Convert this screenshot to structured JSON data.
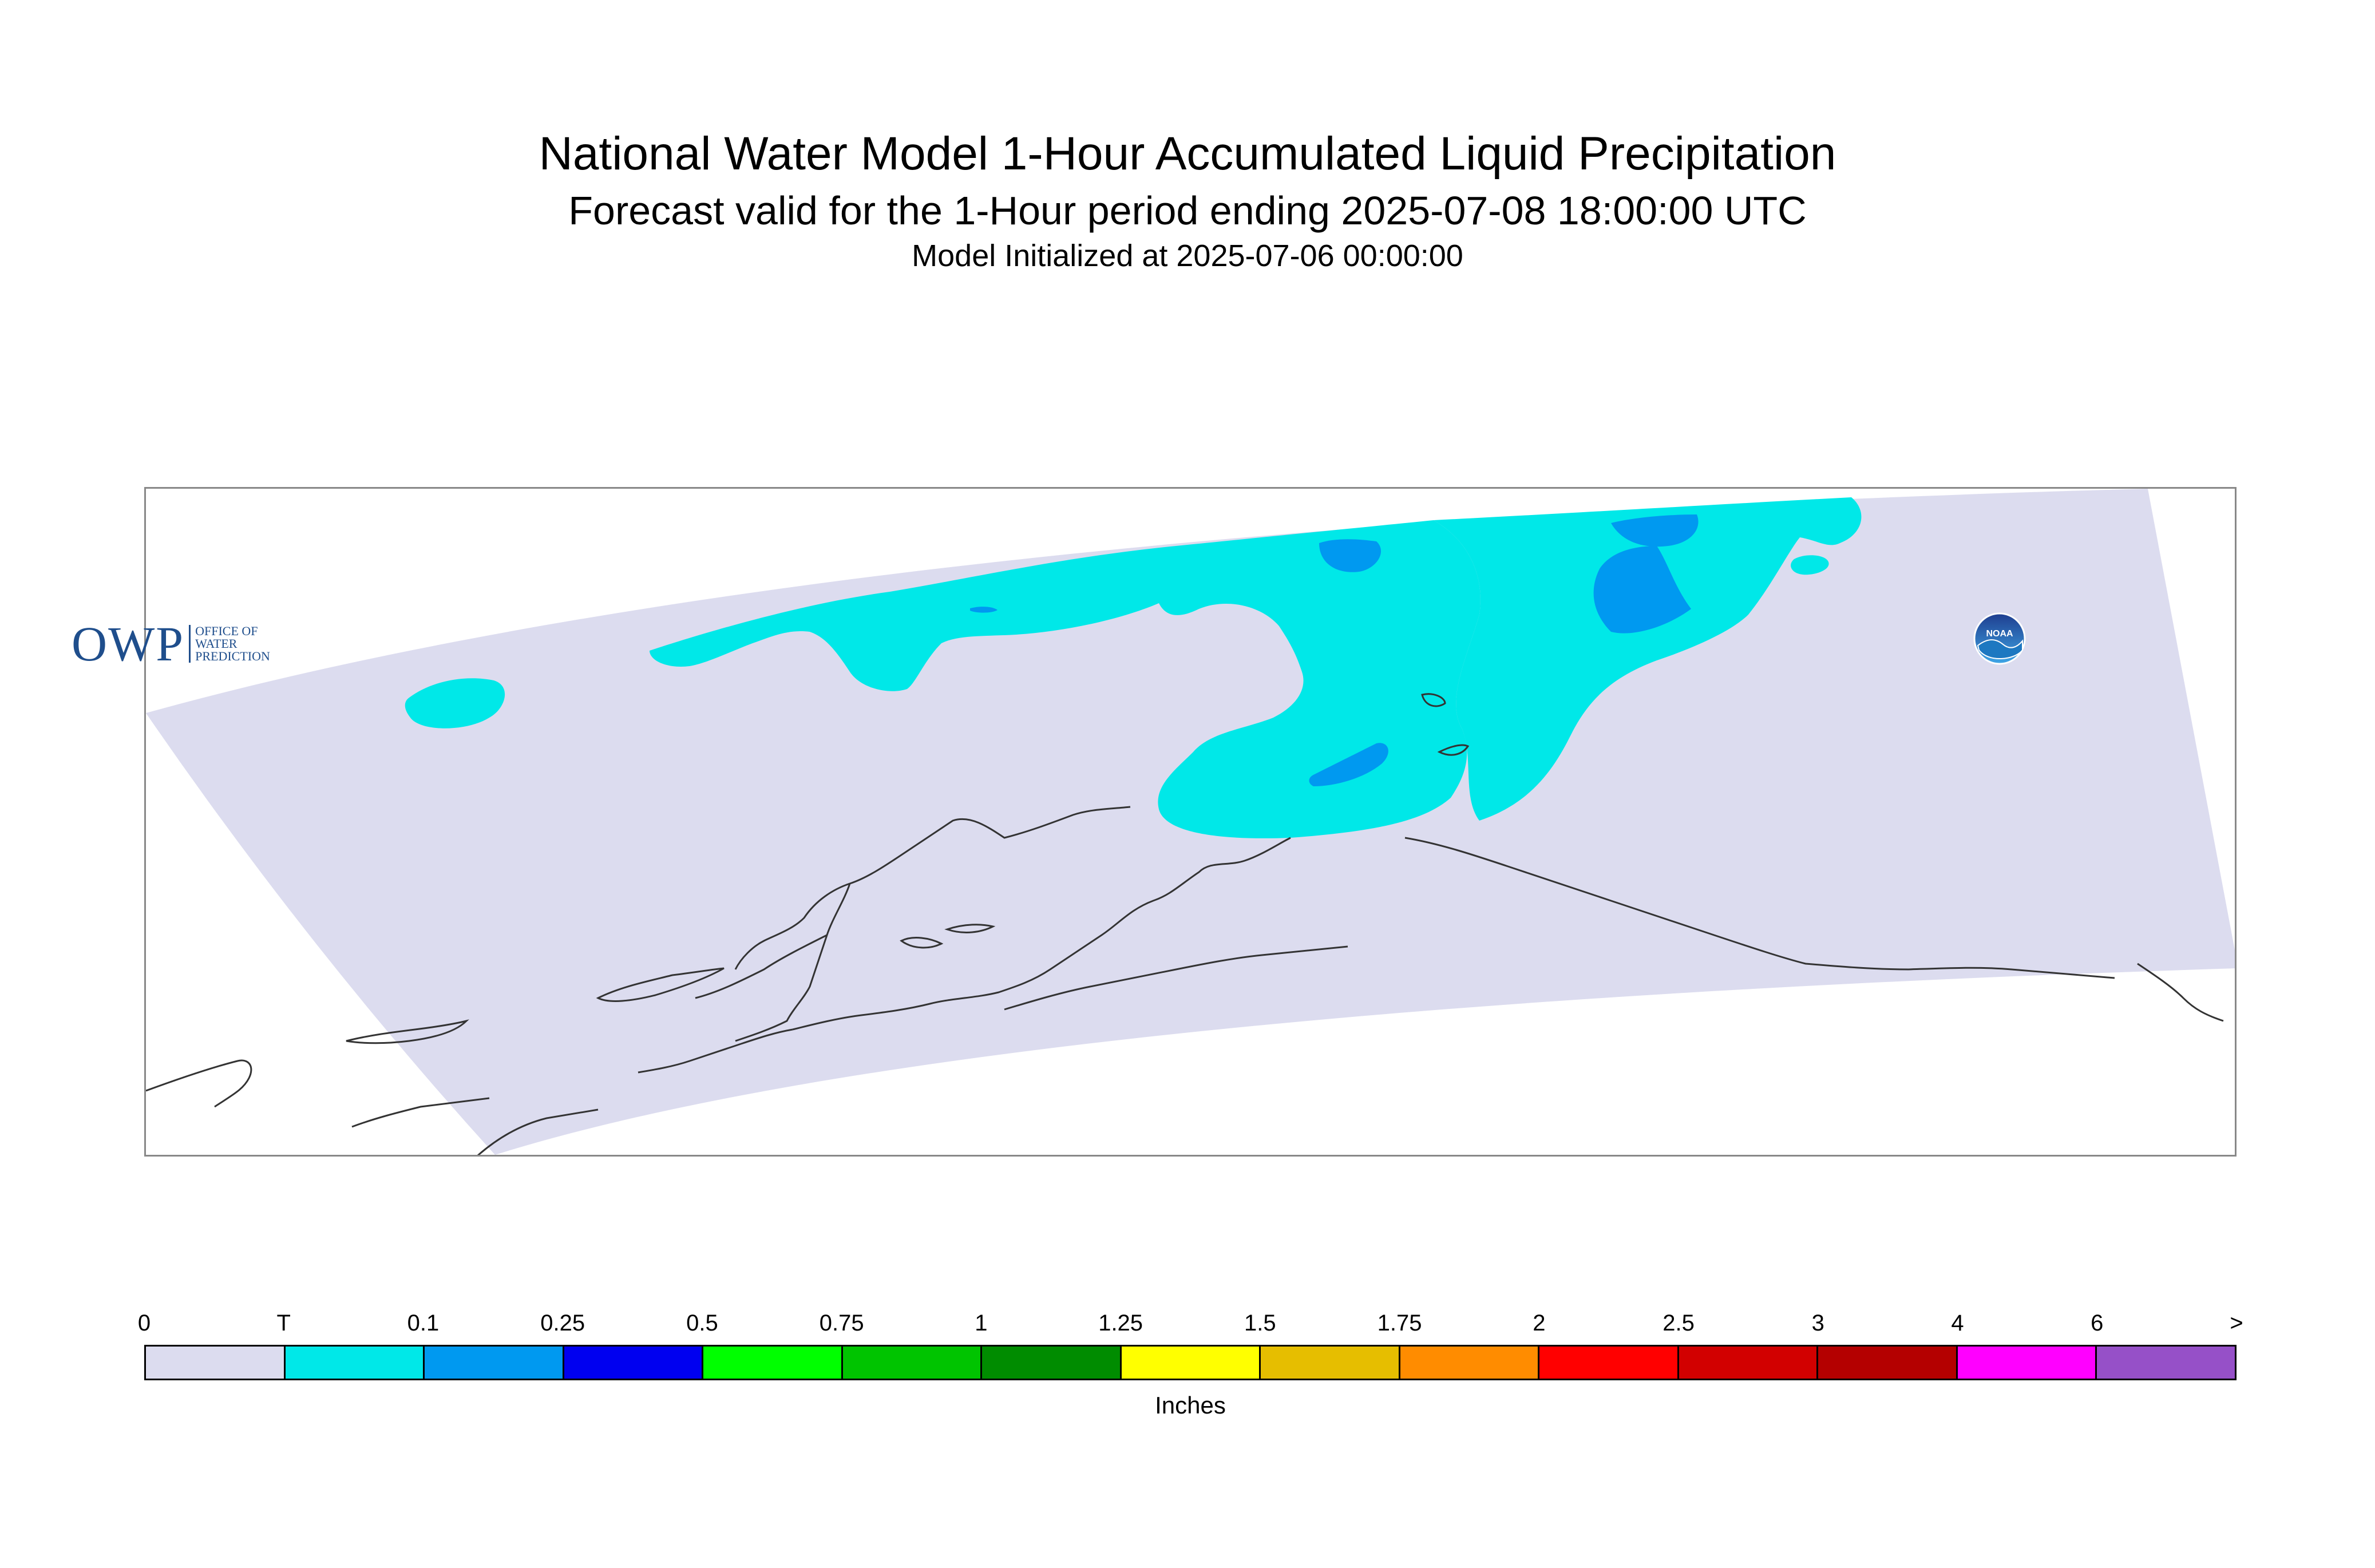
{
  "header": {
    "title": "National Water Model 1-Hour Accumulated Liquid Precipitation",
    "subtitle": "Forecast valid for the 1-Hour period ending 2025-07-08 18:00:00 UTC",
    "init_line": "Model Initialized at 2025-07-06 00:00:00"
  },
  "logos": {
    "owp_letters": "OWP",
    "owp_lines": [
      "OFFICE OF",
      "WATER",
      "PREDICTION"
    ],
    "noaa_text": "NOAA"
  },
  "map": {
    "domain_color": "#dcdcef",
    "coastline_color": "#333333"
  },
  "legend": {
    "tick_labels": [
      "0",
      "T",
      "0.1",
      "0.25",
      "0.5",
      "0.75",
      "1",
      "1.25",
      "1.5",
      "1.75",
      "2",
      "2.5",
      "3",
      "4",
      "6",
      ">"
    ],
    "colors": [
      "#dcdcef",
      "#00e8e8",
      "#0099f0",
      "#0000f0",
      "#00ff00",
      "#00c400",
      "#008c00",
      "#ffff00",
      "#e6be00",
      "#ff8c00",
      "#ff0000",
      "#d20000",
      "#b40000",
      "#ff00ff",
      "#9650c8"
    ],
    "unit_label": "Inches"
  }
}
